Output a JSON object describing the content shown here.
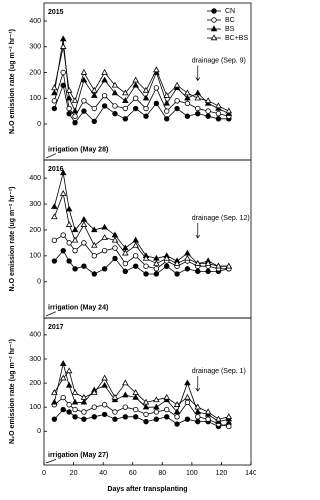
{
  "chart_data": [
    {
      "type": "line",
      "year": "2015",
      "ylabel": "N₂O emission rate (ug m⁻² hr⁻¹)",
      "drainage": "drainage (Sep. 9)",
      "irrigation": "irrigation (May 28)",
      "xlim": [
        0,
        140
      ],
      "ylim": [
        -140,
        470
      ],
      "yticks": [
        0,
        100,
        200,
        300,
        400
      ],
      "legend": "upper right",
      "x": [
        7,
        13,
        17,
        21,
        27,
        34,
        41,
        48,
        55,
        62,
        69,
        76,
        83,
        90,
        97,
        104,
        111,
        118,
        125
      ],
      "series": [
        {
          "name": "CN",
          "color": "#000000",
          "marker": "circle",
          "filled": true,
          "values": [
            60,
            150,
            40,
            5,
            50,
            10,
            70,
            40,
            20,
            60,
            30,
            80,
            20,
            60,
            30,
            40,
            30,
            20,
            20
          ]
        },
        {
          "name": "BC",
          "color": "#000000",
          "marker": "circle",
          "filled": false,
          "values": [
            90,
            200,
            60,
            30,
            90,
            60,
            110,
            70,
            60,
            100,
            60,
            140,
            50,
            90,
            80,
            60,
            50,
            40,
            30
          ]
        },
        {
          "name": "BS",
          "color": "#000000",
          "marker": "triangle",
          "filled": true,
          "values": [
            120,
            330,
            100,
            50,
            170,
            110,
            170,
            120,
            90,
            150,
            100,
            200,
            80,
            140,
            100,
            120,
            80,
            60,
            40
          ]
        },
        {
          "name": "BC+BS",
          "color": "#000000",
          "marker": "triangle",
          "filled": false,
          "values": [
            140,
            300,
            130,
            90,
            200,
            130,
            200,
            150,
            120,
            170,
            130,
            210,
            110,
            150,
            120,
            100,
            90,
            70,
            50
          ]
        }
      ]
    },
    {
      "type": "line",
      "year": "2016",
      "ylabel": "N₂O emission rate (ug m⁻² hr⁻¹)",
      "drainage": "drainage (Sep. 12)",
      "irrigation": "irrigation (May 24)",
      "xlim": [
        0,
        140
      ],
      "ylim": [
        -140,
        470
      ],
      "yticks": [
        0,
        100,
        200,
        300,
        400
      ],
      "x": [
        7,
        13,
        17,
        21,
        27,
        34,
        41,
        48,
        55,
        62,
        69,
        76,
        83,
        90,
        97,
        104,
        111,
        118,
        125
      ],
      "series": [
        {
          "name": "CN",
          "color": "#000000",
          "marker": "circle",
          "filled": true,
          "values": [
            80,
            120,
            80,
            50,
            60,
            30,
            50,
            90,
            40,
            60,
            30,
            30,
            60,
            30,
            50,
            40,
            40,
            40,
            50
          ]
        },
        {
          "name": "BC",
          "color": "#000000",
          "marker": "circle",
          "filled": false,
          "values": [
            160,
            180,
            150,
            120,
            150,
            100,
            120,
            130,
            70,
            100,
            60,
            50,
            80,
            60,
            80,
            60,
            60,
            50,
            50
          ]
        },
        {
          "name": "BS",
          "color": "#000000",
          "marker": "triangle",
          "filled": true,
          "values": [
            290,
            420,
            280,
            200,
            240,
            200,
            210,
            180,
            130,
            160,
            100,
            90,
            100,
            80,
            110,
            70,
            80,
            60,
            60
          ]
        },
        {
          "name": "BC+BS",
          "color": "#000000",
          "marker": "triangle",
          "filled": false,
          "values": [
            250,
            340,
            220,
            160,
            220,
            140,
            170,
            160,
            110,
            140,
            90,
            70,
            90,
            70,
            90,
            70,
            70,
            60,
            60
          ]
        }
      ]
    },
    {
      "type": "line",
      "year": "2017",
      "ylabel": "N₂O emission rate (ug m⁻² hr⁻¹)",
      "drainage": "drainage (Sep. 1)",
      "irrigation": "irrigation (May 27)",
      "xlabel": "Days after transplanting",
      "xlim": [
        0,
        140
      ],
      "xticks": [
        0,
        20,
        40,
        60,
        80,
        100,
        120,
        140
      ],
      "ylim": [
        -140,
        470
      ],
      "yticks": [
        0,
        100,
        200,
        300,
        400
      ],
      "x": [
        7,
        13,
        17,
        21,
        27,
        34,
        41,
        48,
        55,
        62,
        69,
        76,
        83,
        90,
        97,
        104,
        111,
        118,
        125
      ],
      "series": [
        {
          "name": "CN",
          "color": "#000000",
          "marker": "circle",
          "filled": true,
          "values": [
            50,
            90,
            80,
            60,
            50,
            60,
            70,
            50,
            60,
            60,
            40,
            50,
            60,
            30,
            50,
            40,
            40,
            20,
            30
          ]
        },
        {
          "name": "BC",
          "color": "#000000",
          "marker": "circle",
          "filled": false,
          "values": [
            110,
            140,
            110,
            90,
            80,
            100,
            110,
            80,
            100,
            90,
            70,
            80,
            90,
            60,
            120,
            60,
            50,
            30,
            20
          ]
        },
        {
          "name": "BS",
          "color": "#000000",
          "marker": "triangle",
          "filled": true,
          "values": [
            120,
            280,
            190,
            120,
            120,
            170,
            190,
            130,
            150,
            140,
            100,
            100,
            130,
            80,
            200,
            80,
            70,
            40,
            50
          ]
        },
        {
          "name": "BC+BS",
          "color": "#000000",
          "marker": "triangle",
          "filled": false,
          "values": [
            160,
            220,
            250,
            160,
            140,
            160,
            220,
            140,
            200,
            160,
            120,
            130,
            140,
            110,
            140,
            100,
            80,
            50,
            60
          ]
        }
      ]
    }
  ]
}
